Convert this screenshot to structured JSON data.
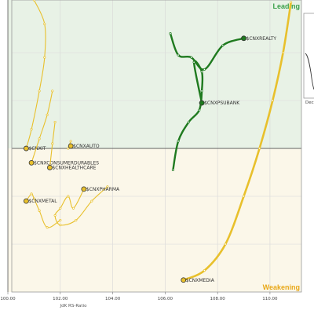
{
  "chart_data": {
    "type": "scatter",
    "xlabel": "JdK RS-Ratio",
    "ylabel": "",
    "xlim": [
      99.7,
      111.2
    ],
    "ylim": [
      94.0,
      106.2
    ],
    "x_ticks": [
      "100.00",
      "102.00",
      "104.00",
      "106.00",
      "108.00",
      "110.00"
    ],
    "x_tick_values": [
      100,
      102,
      104,
      106,
      108,
      110
    ],
    "quadrants": {
      "leading": "Leading",
      "weakening": "Weakening"
    },
    "colors": {
      "leading_bg": "#e8f2e6",
      "weakening_bg": "#fbf7e9",
      "lagging_bg": "#fbeeee",
      "improving_bg": "#eef0fb",
      "leading_text": "#3aa04a",
      "weakening_text": "#e8a818",
      "green_tail": "#1f7a1f",
      "yellow_tail": "#e8c02c"
    },
    "mini_panel": {
      "label": "Dec"
    },
    "series": [
      {
        "name": "$CNXREALTY",
        "color": "green",
        "points": [
          [
            106.2,
            104.8
          ],
          [
            106.5,
            103.9
          ],
          [
            107.0,
            103.8
          ],
          [
            107.5,
            103.3
          ],
          [
            108.2,
            104.3
          ],
          [
            109.0,
            104.6
          ]
        ]
      },
      {
        "name": "$CNXPSUBANK",
        "color": "green",
        "points": [
          [
            106.3,
            99.1
          ],
          [
            106.5,
            100.3
          ],
          [
            106.9,
            101.1
          ],
          [
            107.3,
            101.6
          ],
          [
            107.4,
            102.4
          ],
          [
            107.4,
            103.2
          ],
          [
            107.1,
            103.6
          ],
          [
            107.4,
            101.9
          ]
        ]
      },
      {
        "name": "$CNXMEDIA",
        "color": "yellow",
        "points": [
          [
            110.8,
            106.1
          ],
          [
            110.5,
            104.0
          ],
          [
            110.1,
            102.0
          ],
          [
            109.6,
            100.0
          ],
          [
            109.0,
            98.0
          ],
          [
            108.3,
            96.0
          ],
          [
            107.5,
            94.9
          ],
          [
            106.7,
            94.5
          ]
        ]
      },
      {
        "name": "$CNXIT",
        "color": "yellow",
        "points": [
          [
            101.0,
            106.2
          ],
          [
            101.4,
            105.2
          ],
          [
            101.4,
            103.8
          ],
          [
            101.2,
            102.4
          ],
          [
            100.9,
            100.8
          ],
          [
            100.7,
            100.0
          ]
        ]
      },
      {
        "name": "$CNXAUTO",
        "color": "yellow",
        "points": [
          [
            102.4,
            100.3
          ],
          [
            102.3,
            100.0
          ],
          [
            102.4,
            100.1
          ]
        ]
      },
      {
        "name": "$CNXCONSUMERDURABLES",
        "color": "yellow",
        "points": [
          [
            101.7,
            102.4
          ],
          [
            101.5,
            101.4
          ],
          [
            101.2,
            100.4
          ],
          [
            100.9,
            99.4
          ]
        ]
      },
      {
        "name": "$CNXHEALTHCARE",
        "color": "yellow",
        "points": [
          [
            101.8,
            101.1
          ],
          [
            101.7,
            100.2
          ],
          [
            101.6,
            99.2
          ]
        ]
      },
      {
        "name": "$CNXPHARMA",
        "color": "yellow",
        "points": [
          [
            103.8,
            98.4
          ],
          [
            103.2,
            97.8
          ],
          [
            102.6,
            97.0
          ],
          [
            102.0,
            96.8
          ],
          [
            101.8,
            97.2
          ],
          [
            102.0,
            97.5
          ],
          [
            102.3,
            98.0
          ],
          [
            102.5,
            97.5
          ],
          [
            102.9,
            98.3
          ]
        ]
      },
      {
        "name": "$CNXMETAL",
        "color": "yellow",
        "points": [
          [
            102.0,
            97.0
          ],
          [
            101.5,
            96.7
          ],
          [
            101.2,
            97.4
          ],
          [
            101.0,
            97.9
          ],
          [
            100.9,
            98.1
          ],
          [
            100.7,
            97.8
          ]
        ]
      }
    ]
  }
}
